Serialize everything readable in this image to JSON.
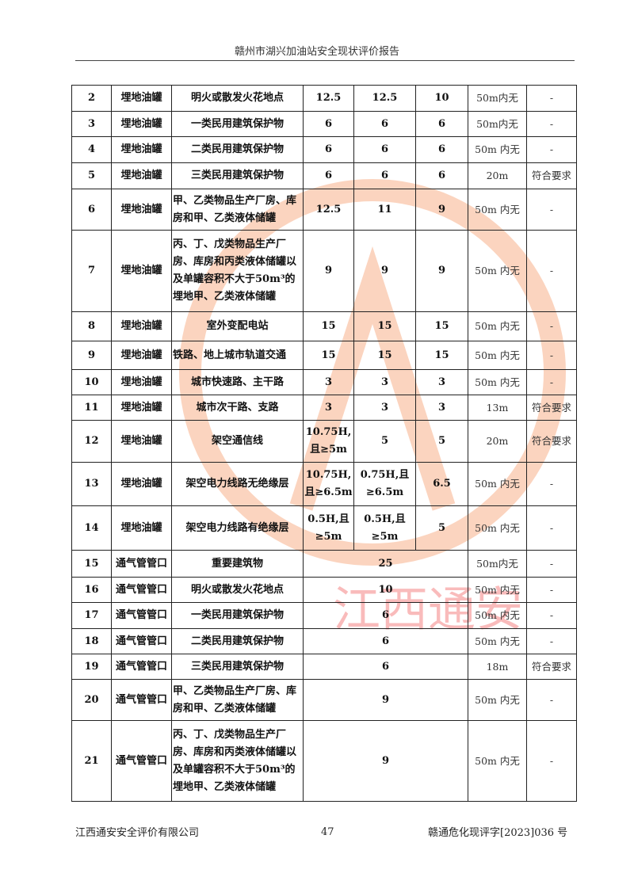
{
  "header": {
    "title": "赣州市湖兴加油站安全现状评价报告"
  },
  "watermark": {
    "text": "江西通安"
  },
  "table": {
    "rows": [
      [
        "2",
        "埋地油罐",
        "明火或散发火花地点",
        "12.5",
        "12.5",
        "10",
        "50m内无",
        "-"
      ],
      [
        "3",
        "埋地油罐",
        "一类民用建筑保护物",
        "6",
        "6",
        "6",
        "50m内无",
        "-"
      ],
      [
        "4",
        "埋地油罐",
        "二类民用建筑保护物",
        "6",
        "6",
        "6",
        "50m 内无",
        "-"
      ],
      [
        "5",
        "埋地油罐",
        "三类民用建筑保护物",
        "6",
        "6",
        "6",
        "20m",
        "符合要求"
      ],
      [
        "6",
        "埋地油罐",
        "甲、乙类物品生产厂房、库房和甲、乙类液体储罐",
        "12.5",
        "11",
        "9",
        "50m 内无",
        "-"
      ],
      [
        "7",
        "埋地油罐",
        "丙、丁、戊类物品生产厂房、库房和丙类液体储罐以及单罐容积不大于50m³的埋地甲、乙类液体储罐",
        "9",
        "9",
        "9",
        "50m 内无",
        "-"
      ],
      [
        "8",
        "埋地油罐",
        "室外变配电站",
        "15",
        "15",
        "15",
        "50m 内无",
        "-"
      ],
      [
        "9",
        "埋地油罐",
        "铁路、地上城市轨道交通",
        "15",
        "15",
        "15",
        "50m 内无",
        "-"
      ],
      [
        "10",
        "埋地油罐",
        "城市快速路、主干路",
        "3",
        "3",
        "3",
        "50m 内无",
        "-"
      ],
      [
        "11",
        "埋地油罐",
        "城市次干路、支路",
        "3",
        "3",
        "3",
        "13m",
        "符合要求"
      ],
      [
        "12",
        "埋地油罐",
        "架空通信线",
        "10.75H,且≥5m",
        "5",
        "5",
        "20m",
        "符合要求"
      ],
      [
        "13",
        "埋地油罐",
        "架空电力线路无绝缘层",
        "10.75H,且≥6.5m",
        "0.75H,且≥6.5m",
        "6.5",
        "50m 内无",
        "-"
      ],
      [
        "14",
        "埋地油罐",
        "架空电力线路有绝缘层",
        "0.5H,且≥5m",
        "0.5H,且≥5m",
        "5",
        "50m 内无",
        "-"
      ],
      [
        "15",
        "通气管管口",
        "重要建筑物",
        "25",
        "50m内无",
        "-"
      ],
      [
        "16",
        "通气管管口",
        "明火或散发火花地点",
        "10",
        "50m 内无",
        "-"
      ],
      [
        "17",
        "通气管管口",
        "一类民用建筑保护物",
        "6",
        "50m 内无",
        "-"
      ],
      [
        "18",
        "通气管管口",
        "二类民用建筑保护物",
        "6",
        "50m 内无",
        "-"
      ],
      [
        "19",
        "通气管管口",
        "三类民用建筑保护物",
        "6",
        "18m",
        "符合要求"
      ],
      [
        "20",
        "通气管管口",
        "甲、乙类物品生产厂房、库房和甲、乙类液体储罐",
        "9",
        "50m 内无",
        "-"
      ],
      [
        "21",
        "通气管管口",
        "丙、丁、戊类物品生产厂房、库房和丙类液体储罐以及单罐容积不大于50m³的埋地甲、乙类液体储罐",
        "9",
        "50m 内无",
        "-"
      ]
    ]
  },
  "footer": {
    "company": "江西通安安全评价有限公司",
    "page": "47",
    "doc_no": "赣通危化现评字[2023]036 号"
  }
}
